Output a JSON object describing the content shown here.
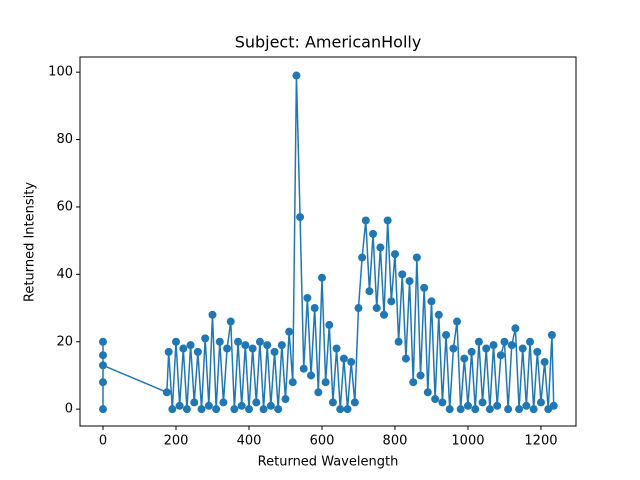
{
  "chart_data": {
    "type": "line",
    "title": "Subject: AmericanHolly",
    "xlabel": "Returned Wavelength",
    "ylabel": "Returned Intensity",
    "x": [
      0,
      0,
      0,
      0,
      0,
      175,
      180,
      190,
      200,
      210,
      220,
      230,
      240,
      250,
      260,
      270,
      280,
      290,
      300,
      310,
      320,
      330,
      340,
      350,
      360,
      370,
      380,
      390,
      400,
      410,
      420,
      430,
      440,
      450,
      460,
      470,
      480,
      490,
      500,
      510,
      520,
      530,
      540,
      550,
      560,
      570,
      580,
      590,
      600,
      610,
      620,
      630,
      640,
      650,
      660,
      670,
      680,
      690,
      700,
      710,
      720,
      730,
      740,
      750,
      760,
      770,
      780,
      790,
      800,
      810,
      820,
      830,
      840,
      850,
      860,
      870,
      880,
      890,
      900,
      910,
      920,
      930,
      940,
      950,
      960,
      970,
      980,
      990,
      1000,
      1010,
      1020,
      1030,
      1040,
      1050,
      1060,
      1070,
      1080,
      1090,
      1100,
      1110,
      1120,
      1130,
      1140,
      1150,
      1160,
      1170,
      1180,
      1190,
      1200,
      1210,
      1220,
      1230,
      1235
    ],
    "values": [
      0,
      20,
      16,
      8,
      13,
      5,
      17,
      0,
      20,
      1,
      18,
      0,
      19,
      2,
      17,
      0,
      21,
      1,
      28,
      0,
      20,
      2,
      18,
      26,
      0,
      20,
      1,
      19,
      0,
      18,
      2,
      20,
      0,
      19,
      1,
      17,
      0,
      19,
      3,
      23,
      8,
      99,
      57,
      12,
      33,
      10,
      30,
      5,
      39,
      8,
      25,
      2,
      18,
      0,
      15,
      0,
      14,
      2,
      30,
      45,
      56,
      35,
      52,
      30,
      48,
      28,
      56,
      32,
      46,
      20,
      40,
      15,
      38,
      8,
      45,
      10,
      36,
      5,
      32,
      3,
      28,
      2,
      22,
      0,
      18,
      26,
      0,
      15,
      1,
      17,
      0,
      20,
      2,
      18,
      0,
      19,
      1,
      16,
      20,
      0,
      19,
      24,
      0,
      18,
      1,
      20,
      0,
      17,
      2,
      14,
      0,
      22,
      1
    ],
    "color": "#1f77b4",
    "xlim": [
      -63,
      1296
    ],
    "ylim": [
      -5,
      104.5
    ],
    "xticks": [
      0,
      200,
      400,
      600,
      800,
      1000,
      1200
    ],
    "yticks": [
      0,
      20,
      40,
      60,
      80,
      100
    ]
  }
}
